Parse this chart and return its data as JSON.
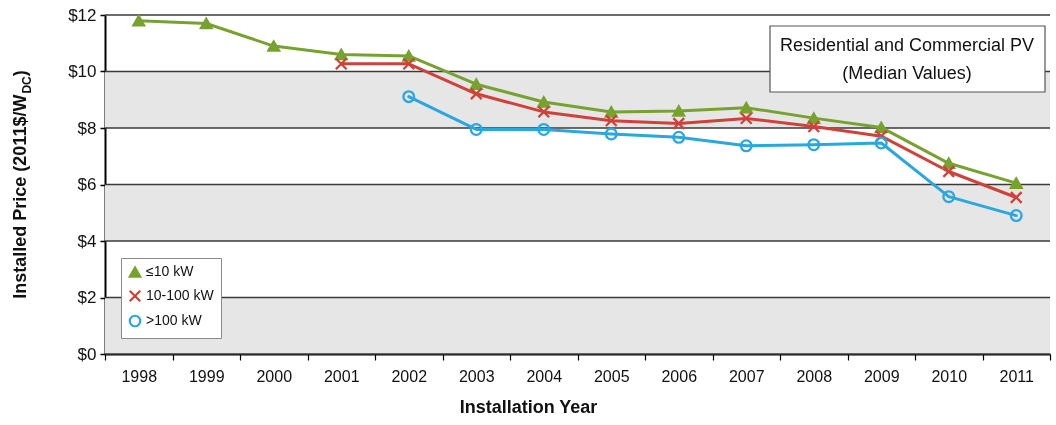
{
  "chart_data": {
    "type": "line",
    "title": "Residential and Commercial PV",
    "subtitle": "(Median Values)",
    "xlabel": "Installation Year",
    "ylabel": "Installed Price (2011$/W$_{DC}$)",
    "categories": [
      "1998",
      "1999",
      "2000",
      "2001",
      "2002",
      "2003",
      "2004",
      "2005",
      "2006",
      "2007",
      "2008",
      "2009",
      "2010",
      "2011"
    ],
    "series": [
      {
        "name": "≤10 kW",
        "color": "#78a22f",
        "marker": "triangle",
        "values": [
          11.8,
          11.7,
          10.9,
          10.6,
          10.55,
          9.55,
          8.92,
          8.57,
          8.6,
          8.72,
          8.35,
          8.02,
          6.75,
          6.05
        ]
      },
      {
        "name": "10-100 kW",
        "color": "#d0413a",
        "marker": "cross",
        "values": [
          null,
          null,
          null,
          10.27,
          10.27,
          9.21,
          8.57,
          8.26,
          8.16,
          8.34,
          8.05,
          7.71,
          6.46,
          5.54
        ]
      },
      {
        "name": ">100 kW",
        "color": "#2aa7df",
        "marker": "circle",
        "values": [
          null,
          null,
          null,
          null,
          9.11,
          7.95,
          7.95,
          7.79,
          7.67,
          7.37,
          7.41,
          7.47,
          5.57,
          4.9
        ]
      }
    ],
    "ylim": [
      0,
      12
    ],
    "yticks": [
      {
        "value": 0,
        "label": "$0"
      },
      {
        "value": 2,
        "label": "$2"
      },
      {
        "value": 4,
        "label": "$4"
      },
      {
        "value": 6,
        "label": "$6"
      },
      {
        "value": 8,
        "label": "$8"
      },
      {
        "value": 10,
        "label": "$10"
      },
      {
        "value": 12,
        "label": "$12"
      }
    ],
    "bands": [
      {
        "axis": "y",
        "from": 0,
        "to": 2,
        "color": "#e6e6e6"
      },
      {
        "axis": "y",
        "from": 4,
        "to": 6,
        "color": "#e6e6e6"
      },
      {
        "axis": "y",
        "from": 8,
        "to": 10,
        "color": "#e6e6e6"
      }
    ],
    "grid": "y",
    "legend": "bottom left",
    "line_style": "solid"
  }
}
